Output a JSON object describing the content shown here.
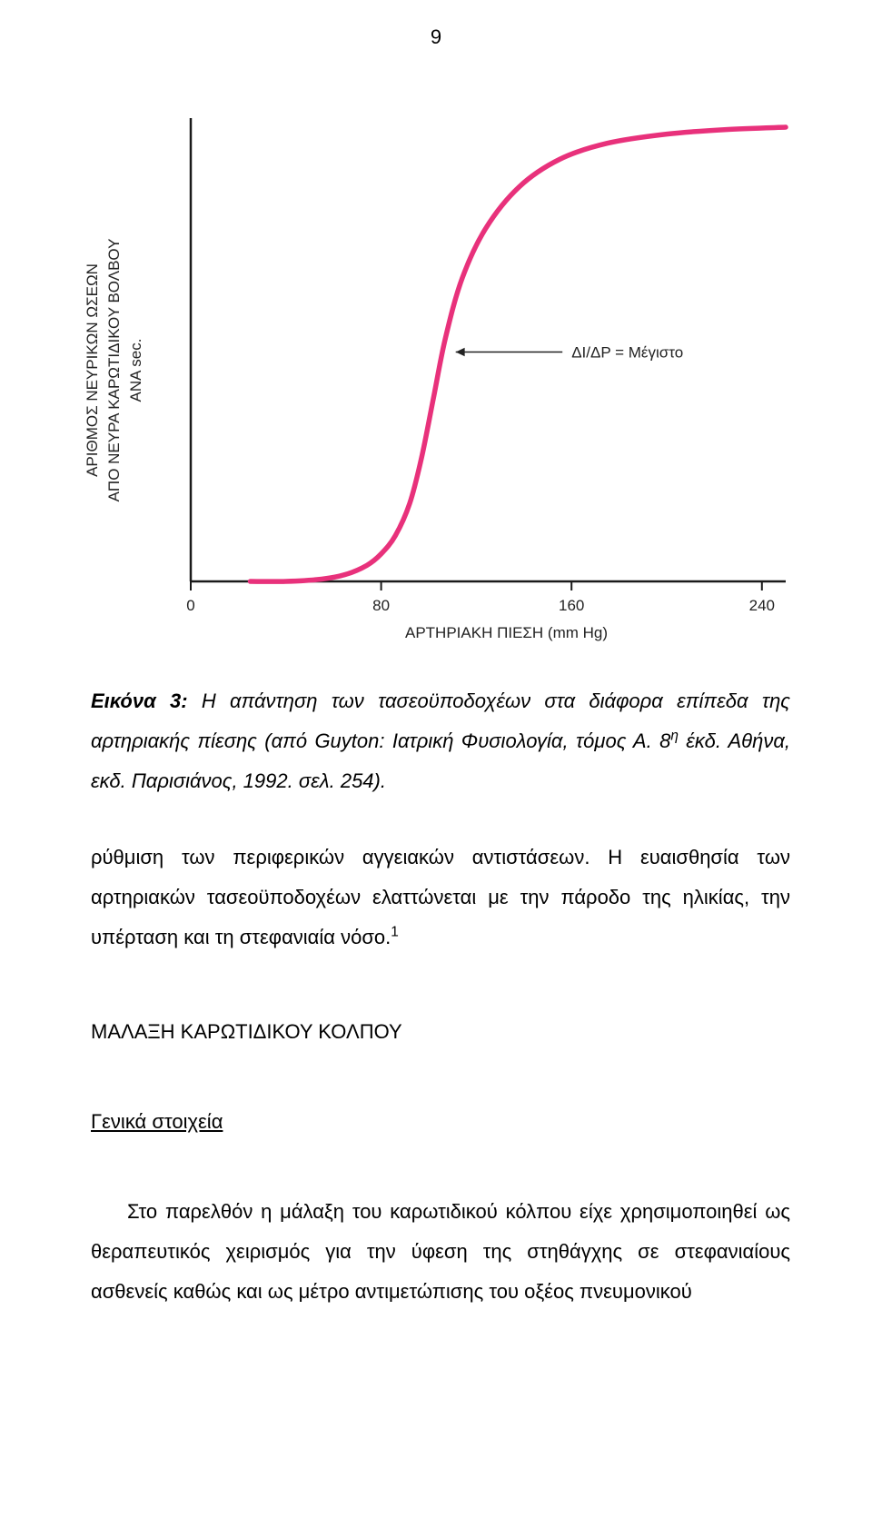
{
  "page_number": "9",
  "figure": {
    "type": "line",
    "y_axis_label_lines": [
      "ΑΡΙΘΜΟΣ ΝΕΥΡΙΚΩΝ ΩΣΕΩΝ",
      "ΑΠΟ ΝΕΥΡΑ ΚΑΡΩΤΙΔΙΚΟΥ ΒΟΛΒΟΥ",
      "ΑΝΑ sec."
    ],
    "x_axis_label": "ΑΡΤΗΡΙΑΚΗ ΠΙΕΣΗ (mm Hg)",
    "x_ticks": [
      0,
      80,
      160,
      240
    ],
    "xlim": [
      0,
      250
    ],
    "ylim": [
      0,
      1
    ],
    "curve_points": [
      [
        25,
        0.0
      ],
      [
        40,
        0.0
      ],
      [
        55,
        0.005
      ],
      [
        65,
        0.015
      ],
      [
        74,
        0.035
      ],
      [
        80,
        0.06
      ],
      [
        86,
        0.1
      ],
      [
        92,
        0.17
      ],
      [
        97,
        0.27
      ],
      [
        102,
        0.4
      ],
      [
        107,
        0.53
      ],
      [
        114,
        0.66
      ],
      [
        124,
        0.77
      ],
      [
        138,
        0.86
      ],
      [
        155,
        0.92
      ],
      [
        175,
        0.955
      ],
      [
        200,
        0.975
      ],
      [
        225,
        0.985
      ],
      [
        250,
        0.99
      ]
    ],
    "annotation_text": "ΔΙ/ΔP  =  Μέγιστο",
    "annotation_target": [
      106,
      0.5
    ],
    "annotation_text_anchor": [
      160,
      0.5
    ],
    "curve_color": "#e8317b",
    "curve_width": 5.5,
    "axis_color": "#1a1a1a",
    "tick_color": "#1a1a1a",
    "background_color": "#ffffff",
    "axis_font_size": 17,
    "label_font_size": 17
  },
  "caption": {
    "lead": "Εικόνα 3:",
    "rest_a": " Η απάντηση των τασεοϋποδοχέων στα διάφορα επίπεδα της αρτηριακής πίεσης (από Guyton: Ιατρική Φυσιολογία, τόμος Α. 8",
    "sup": "η",
    "rest_b": " έκδ. Αθήνα, εκδ. Παρισιάνος, 1992. σελ. 254)."
  },
  "body_para": "ρύθμιση των περιφερικών αγγειακών αντιστάσεων. Η ευαισθησία των αρτηριακών τασεοϋποδοχέων ελαττώνεται με την πάροδο της ηλικίας, την υπέρταση και τη στεφανιαία νόσο.",
  "body_para_ref": "1",
  "section_heading": "ΜΑΛΑΞΗ ΚΑΡΩΤΙΔΙΚΟΥ ΚΟΛΠΟΥ",
  "sub_heading": "Γενικά στοιχεία",
  "body_para2": "Στο παρελθόν η μάλαξη του καρωτιδικού κόλπου είχε χρησιμοποιηθεί ως θεραπευτικός χειρισμός για την ύφεση της στηθάγχης σε στεφανιαίους ασθενείς καθώς και ως μέτρο αντιμετώπισης του οξέος πνευμονικού"
}
